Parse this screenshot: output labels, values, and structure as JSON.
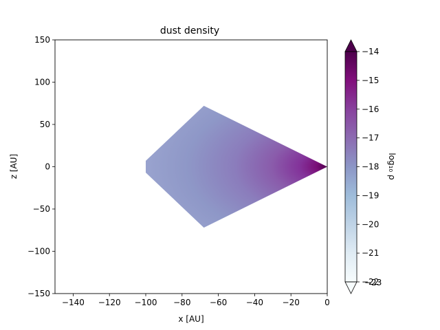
{
  "chart_data": {
    "type": "heatmap",
    "title": "dust density",
    "xlabel": "x [AU]",
    "ylabel": "z [AU]",
    "xlim": [
      -150,
      0
    ],
    "ylim": [
      -150,
      150
    ],
    "xticks": [
      -140,
      -120,
      -100,
      -80,
      -60,
      -40,
      -20,
      0
    ],
    "yticks": [
      -150,
      -100,
      -50,
      0,
      50,
      100,
      150
    ],
    "xtick_labels": [
      "−140",
      "−120",
      "−100",
      "−80",
      "−60",
      "−40",
      "−20",
      "0"
    ],
    "ytick_labels": [
      "−150",
      "−100",
      "−50",
      "0",
      "50",
      "100",
      "150"
    ],
    "region": {
      "description": "wedge of the disk, radii about 100 AU down to 0, opening ±~46°",
      "vertices": [
        [
          0,
          0
        ],
        [
          -68,
          72
        ],
        [
          -100,
          7
        ],
        [
          -100,
          -7
        ],
        [
          -68,
          -72
        ]
      ]
    },
    "colorbar": {
      "label": "log₁₀ ρ",
      "colormap": "BuPu",
      "range": [
        -22,
        -14
      ],
      "ticks": [
        -14,
        -15,
        -16,
        -17,
        -18,
        -19,
        -20,
        -21,
        -22
      ],
      "tick_labels": [
        "−14",
        "−15",
        "−16",
        "−17",
        "−18",
        "−19",
        "−20",
        "−21",
        "−22"
      ],
      "extend": "both",
      "extra_label": "−23"
    },
    "field": {
      "outer_value": -18.2,
      "inner_value": -14.0,
      "note": "density rises toward origin, concentrated near midplane"
    }
  }
}
